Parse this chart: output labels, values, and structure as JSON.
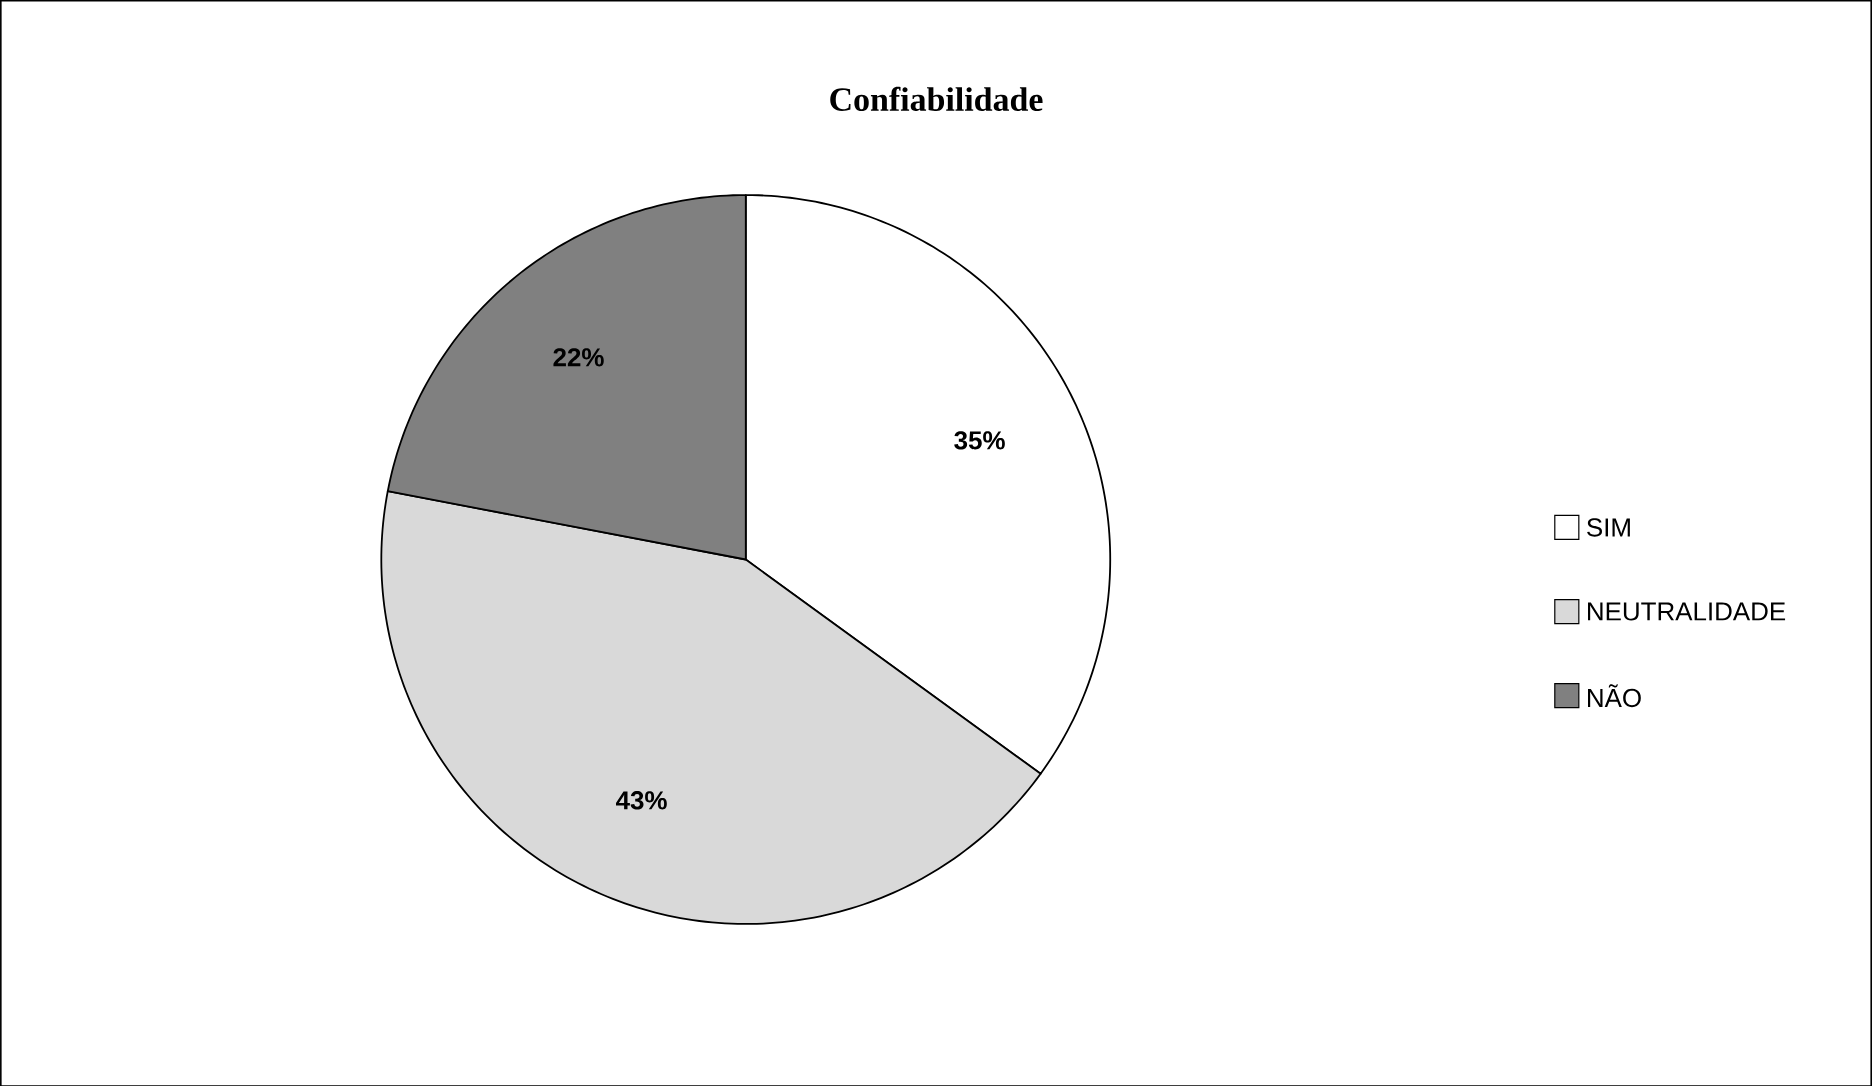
{
  "chart_data": {
    "type": "pie",
    "title": "Confiabilidade",
    "categories": [
      "SIM",
      "NEUTRALIDADE",
      "NÃO"
    ],
    "values": [
      35,
      43,
      22
    ],
    "value_labels": [
      "35%",
      "43%",
      "22%"
    ],
    "colors": [
      "#ffffff",
      "#d9d9d9",
      "#808080"
    ],
    "legend": "right"
  }
}
